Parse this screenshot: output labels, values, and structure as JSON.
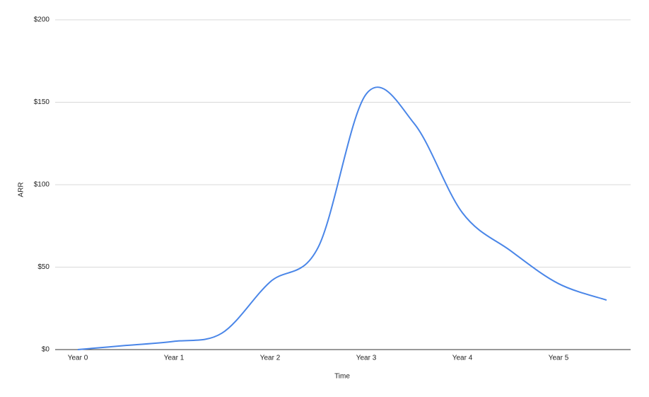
{
  "chart_data": {
    "type": "line",
    "x_label": "Time",
    "y_label": "ARR",
    "categories": [
      "Year 0",
      null,
      "Year 1",
      null,
      "Year 2",
      null,
      "Year 3",
      null,
      "Year 4",
      null,
      "Year 5",
      null
    ],
    "series": [
      {
        "name": "ARR",
        "color": "#4a86e8",
        "values": [
          0,
          2.5,
          5,
          10,
          41,
          62,
          155,
          137,
          83,
          60,
          40,
          30
        ]
      }
    ],
    "ylim": [
      0,
      200
    ],
    "yticks": [
      {
        "value": 0,
        "label": "$0"
      },
      {
        "value": 50,
        "label": "$50"
      },
      {
        "value": 100,
        "label": "$100"
      },
      {
        "value": 150,
        "label": "$150"
      },
      {
        "value": 200,
        "label": "$200"
      }
    ],
    "grid": true,
    "smooth": true
  }
}
